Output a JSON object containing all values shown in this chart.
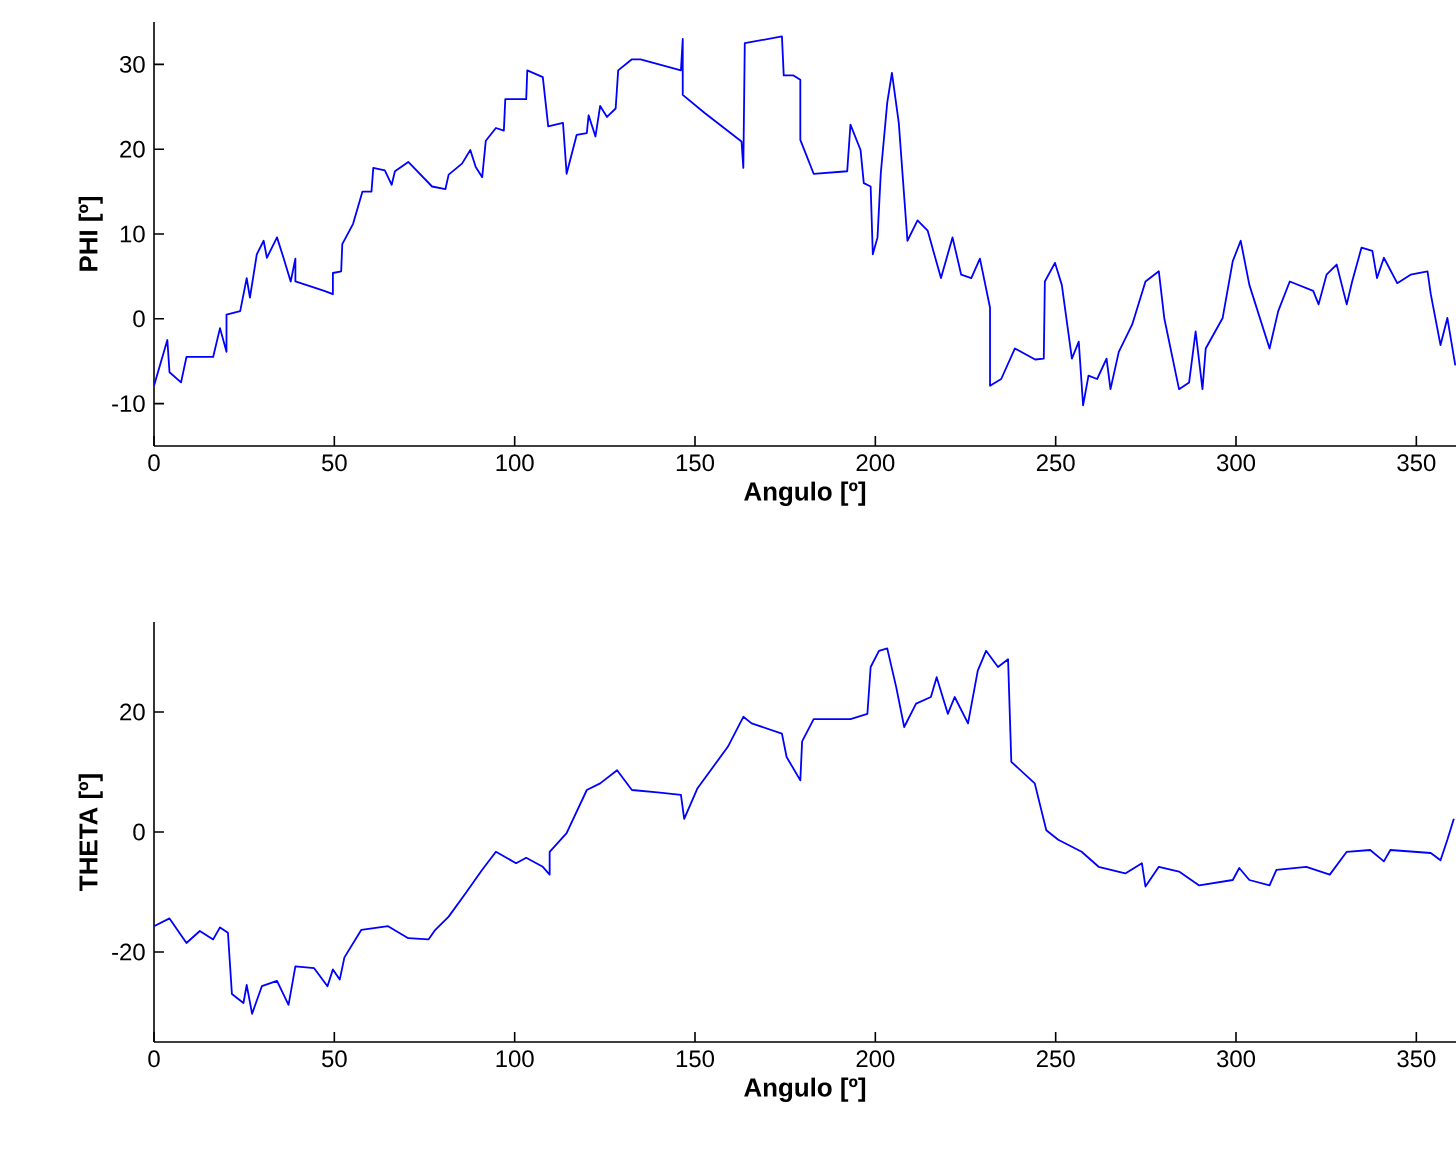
{
  "chart_data": [
    {
      "type": "line",
      "xlabel": "Angulo [º]",
      "ylabel": "PHI [º]",
      "xlim": [
        0,
        361
      ],
      "xticks": [
        0,
        50,
        100,
        150,
        200,
        250,
        300,
        350
      ],
      "ylim": [
        -15,
        35
      ],
      "yticks": [
        -10,
        0,
        10,
        20,
        30
      ],
      "series": [
        {
          "color": "#0000ff",
          "x": [
            0,
            3.7,
            4.3,
            7.5,
            9,
            16.4,
            18.3,
            20.1,
            20.1,
            23.9,
            25.7,
            26.6,
            28.5,
            30.4,
            31.3,
            34.1,
            35.9,
            37.9,
            39.2,
            39.2,
            47.2,
            49.6,
            49.6,
            51.9,
            52.2,
            55.2,
            57.8,
            60.3,
            60.8,
            64,
            65.9,
            66.8,
            70.5,
            77.1,
            80.8,
            81.7,
            85.4,
            87.7,
            89.2,
            91,
            92,
            94.8,
            97,
            97.4,
            103.2,
            103.5,
            107.8,
            109.3,
            113.4,
            114.4,
            117.2,
            120,
            120.5,
            122.4,
            123.7,
            125.6,
            128,
            128.7,
            132.5,
            134.9,
            146.1,
            146.6,
            146.6,
            152.6,
            162.9,
            163.4,
            163.8,
            174.1,
            174.6,
            177.3,
            179.2,
            179.2,
            182.9,
            192.2,
            193.1,
            195.9,
            196.8,
            198.7,
            199.3,
            200.6,
            201.5,
            203.3,
            204.6,
            206.5,
            208.9,
            211.7,
            214.5,
            218.2,
            221.4,
            223.8,
            226.6,
            229,
            231.8,
            231.8,
            234.9,
            238.7,
            244.3,
            246.7,
            247,
            249.8,
            251.7,
            254.5,
            256.4,
            257.6,
            259.1,
            261.5,
            264.1,
            265.2,
            267.5,
            271.2,
            274.9,
            278.6,
            280.1,
            284.2,
            287,
            288.8,
            290.7,
            291.6,
            296.3,
            299.1,
            301.3,
            303.7,
            309.3,
            311.7,
            314.9,
            321.4,
            322.9,
            325.1,
            327.9,
            330.7,
            332.2,
            334.8,
            337.8,
            339.1,
            341,
            344.7,
            348.4,
            353.1,
            354,
            356.7,
            358.6,
            360.8
          ],
          "values": [
            -7.9,
            -2.5,
            -6.3,
            -7.5,
            -4.5,
            -4.5,
            -1.1,
            -3.9,
            0.5,
            0.9,
            4.8,
            2.5,
            7.6,
            9.2,
            7.2,
            9.6,
            7.2,
            4.4,
            7.1,
            4.4,
            3.3,
            2.9,
            5.4,
            5.6,
            8.8,
            11.2,
            15,
            15,
            17.8,
            17.5,
            15.8,
            17.4,
            18.5,
            15.6,
            15.3,
            17,
            18.3,
            19.9,
            17.9,
            16.7,
            21,
            22.5,
            22.2,
            25.9,
            25.9,
            29.3,
            28.5,
            22.7,
            23.1,
            17.1,
            21.7,
            21.9,
            24,
            21.5,
            25.1,
            23.8,
            24.8,
            29.3,
            30.6,
            30.6,
            29.3,
            33,
            26.4,
            24.3,
            20.9,
            17.8,
            32.5,
            33.3,
            28.7,
            28.7,
            28.2,
            21.1,
            17.1,
            17.4,
            22.9,
            19.9,
            16,
            15.6,
            7.6,
            9.6,
            17.1,
            25.5,
            29,
            23.1,
            9.2,
            11.6,
            10.4,
            4.8,
            9.6,
            5.2,
            4.8,
            7.1,
            1.3,
            -7.9,
            -7.1,
            -3.5,
            -4.8,
            -4.7,
            4.4,
            6.6,
            4,
            -4.7,
            -2.7,
            -10.2,
            -6.7,
            -7.1,
            -4.7,
            -8.3,
            -3.9,
            -0.7,
            4.4,
            5.6,
            0.1,
            -8.3,
            -7.5,
            -1.5,
            -8.3,
            -3.5,
            0.1,
            6.8,
            9.2,
            4,
            -3.5,
            0.9,
            4.4,
            3.3,
            1.7,
            5.2,
            6.4,
            1.7,
            4.4,
            8.4,
            8,
            4.8,
            7.2,
            4.2,
            5.2,
            5.6,
            2.9,
            -3.1,
            0.1,
            -5.5
          ]
        }
      ]
    },
    {
      "type": "line",
      "xlabel": "Angulo [º]",
      "ylabel": "THETA [º]",
      "xlim": [
        0,
        361
      ],
      "xticks": [
        0,
        50,
        100,
        150,
        200,
        250,
        300,
        350
      ],
      "ylim": [
        -35,
        35
      ],
      "yticks": [
        -20,
        0,
        20
      ],
      "series": [
        {
          "color": "#0000ff",
          "x": [
            0,
            4.3,
            9,
            12.7,
            16.4,
            18.3,
            20.5,
            21.6,
            24.8,
            25.7,
            27.2,
            29.9,
            34.1,
            37.3,
            39.2,
            44.4,
            48.1,
            49.6,
            51.5,
            52.8,
            57.5,
            64.9,
            70.5,
            76.1,
            78,
            81.7,
            86.4,
            91,
            94.8,
            100.4,
            103.2,
            107.8,
            109.7,
            109.7,
            114.4,
            120,
            123.7,
            128.4,
            132.5,
            139.6,
            146.1,
            147,
            150.7,
            159.1,
            163.4,
            165.7,
            174.1,
            175.4,
            179.2,
            179.7,
            182.9,
            193.1,
            197.8,
            198.7,
            201,
            203.3,
            205.8,
            208,
            211.3,
            215.4,
            217,
            220.1,
            222,
            225.7,
            228.4,
            230.7,
            234,
            236.8,
            237.7,
            244.2,
            247.4,
            250.7,
            257.2,
            261.9,
            269.3,
            273.9,
            274.9,
            278.6,
            284.2,
            289.8,
            299.1,
            300.9,
            303.7,
            309.3,
            311.2,
            319.5,
            326,
            330.7,
            337.2,
            341,
            342.8,
            354,
            356.7,
            358.6,
            360.4
          ],
          "values": [
            -15.7,
            -14.4,
            -18.5,
            -16.5,
            -17.9,
            -15.9,
            -16.8,
            -27,
            -28.5,
            -25.5,
            -30.3,
            -25.7,
            -24.8,
            -28.8,
            -22.4,
            -22.7,
            -25.7,
            -22.9,
            -24.6,
            -20.9,
            -16.3,
            -15.7,
            -17.7,
            -17.9,
            -16.3,
            -14.1,
            -10.2,
            -6.3,
            -3.3,
            -5.2,
            -4.3,
            -5.8,
            -7.1,
            -3.3,
            -0.2,
            7,
            8.1,
            10.3,
            7,
            6.6,
            6.2,
            2.2,
            7.3,
            14.2,
            19.2,
            18.1,
            16.4,
            12.5,
            8.6,
            15.1,
            18.8,
            18.8,
            19.7,
            27.5,
            30.2,
            30.6,
            24.1,
            17.5,
            21.4,
            22.5,
            25.8,
            19.7,
            22.5,
            18.1,
            26.9,
            30.2,
            27.5,
            28.8,
            11.7,
            8.1,
            0.3,
            -1.3,
            -3.3,
            -5.8,
            -6.9,
            -5.2,
            -9.1,
            -5.8,
            -6.6,
            -8.9,
            -8,
            -6,
            -8,
            -8.9,
            -6.3,
            -5.8,
            -7.1,
            -3.3,
            -3,
            -4.9,
            -3,
            -3.5,
            -4.7,
            -1.3,
            2.2
          ]
        }
      ]
    }
  ]
}
